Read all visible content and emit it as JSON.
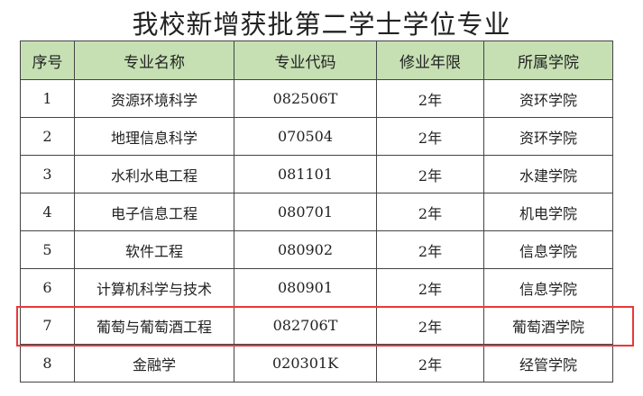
{
  "title": "我校新增获批第二学士学位专业",
  "headers": [
    "序号",
    "专业名称",
    "专业代码",
    "修业年限",
    "所属学院"
  ],
  "rows": [
    [
      "1",
      "资源环境科学",
      "082506T",
      "2年",
      "资环学院"
    ],
    [
      "2",
      "地理信息科学",
      "070504",
      "2年",
      "资环学院"
    ],
    [
      "3",
      "水利水电工程",
      "081101",
      "2年",
      "水建学院"
    ],
    [
      "4",
      "电子信息工程",
      "080701",
      "2年",
      "机电学院"
    ],
    [
      "5",
      "软件工程",
      "080902",
      "2年",
      "信息学院"
    ],
    [
      "6",
      "计算机科学与技术",
      "080901",
      "2年",
      "信息学院"
    ],
    [
      "7",
      "葡萄与葡萄酒工程",
      "082706T",
      "2年",
      "葡萄酒学院"
    ],
    [
      "8",
      "金融学",
      "020301K",
      "2年",
      "经管学院"
    ]
  ],
  "highlight_row": 7,
  "colors": {
    "header_bg": "#c6e0b4",
    "highlight": "#e8393b"
  }
}
